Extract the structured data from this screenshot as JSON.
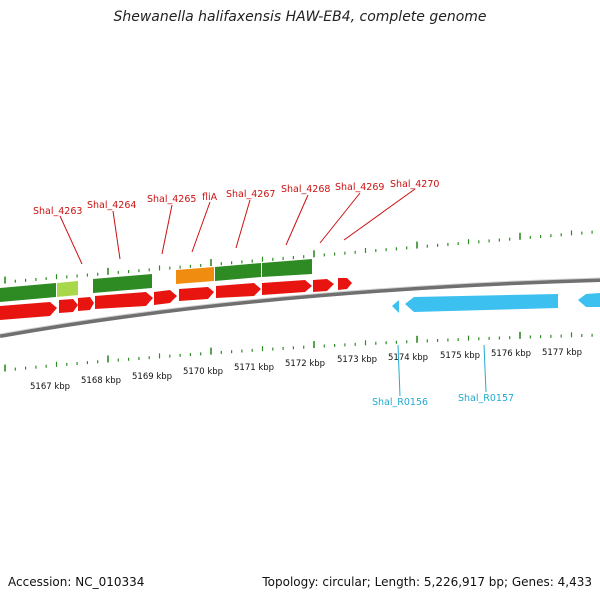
{
  "title": "Shewanella halifaxensis HAW-EB4, complete genome",
  "footer": {
    "accession": "Accession: NC_010334",
    "summary": "Topology: circular; Length: 5,226,917 bp; Genes: 4,433"
  },
  "colors": {
    "forward_cds": "#e8140f",
    "reverse_cds": "#3cc0f0",
    "gene_bar": "#2e8b24",
    "gene_bar_alt": "#f08c10",
    "gene_bar_light": "#a8d84a",
    "tick": "#2e8b24",
    "backbone": "#707070",
    "label_red": "#cc1111",
    "label_cyan": "#22aad0"
  },
  "gene_labels": [
    {
      "id": "lbl-shal-4263",
      "text": "Shal_4263"
    },
    {
      "id": "lbl-shal-4264",
      "text": "Shal_4264"
    },
    {
      "id": "lbl-shal-4265",
      "text": "Shal_4265"
    },
    {
      "id": "lbl-flia",
      "text": "fliA"
    },
    {
      "id": "lbl-shal-4267",
      "text": "Shal_4267"
    },
    {
      "id": "lbl-shal-4268",
      "text": "Shal_4268"
    },
    {
      "id": "lbl-shal-4269",
      "text": "Shal_4269"
    },
    {
      "id": "lbl-shal-4270",
      "text": "Shal_4270"
    }
  ],
  "rna_labels": [
    {
      "id": "lbl-shal-r0156",
      "text": "Shal_R0156"
    },
    {
      "id": "lbl-shal-r0157",
      "text": "Shal_R0157"
    }
  ],
  "kbp_labels": [
    "5167 kbp",
    "5168 kbp",
    "5169 kbp",
    "5170 kbp",
    "5171 kbp",
    "5172 kbp",
    "5173 kbp",
    "5174 kbp",
    "5175 kbp",
    "5176 kbp",
    "5177 kbp"
  ]
}
